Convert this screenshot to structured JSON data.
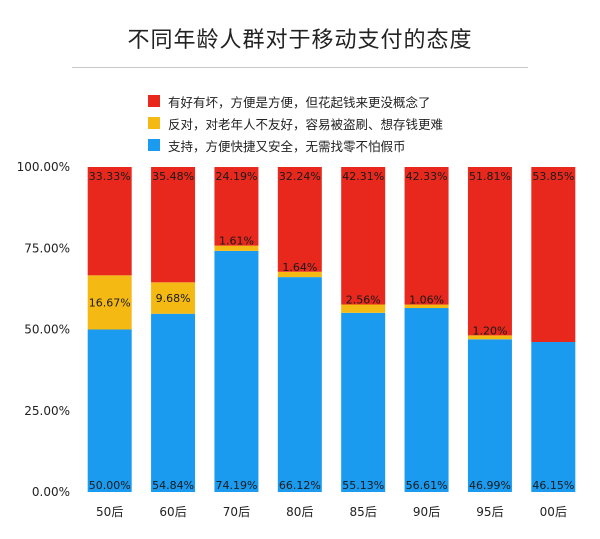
{
  "chart_data": {
    "type": "bar",
    "stacked": true,
    "title": "不同年龄人群对于移动支付的态度",
    "categories": [
      "50后",
      "60后",
      "70后",
      "80后",
      "85后",
      "90后",
      "95后",
      "00后"
    ],
    "y_tick_labels": [
      "0.00%",
      "25.00%",
      "50.00%",
      "75.00%",
      "100.00%"
    ],
    "ylim": [
      0,
      100
    ],
    "legend_position": "top",
    "series": [
      {
        "name": "支持，方便快捷又安全，无需找零不怕假币",
        "color": "#1a9bf0",
        "values": [
          50.0,
          54.84,
          74.19,
          66.12,
          55.13,
          56.61,
          46.99,
          46.15
        ],
        "labels": [
          "50.00%",
          "54.84%",
          "74.19%",
          "66.12%",
          "55.13%",
          "56.61%",
          "46.99%",
          "46.15%"
        ]
      },
      {
        "name": "反对，对老年人不友好，容易被盗刷、想存钱更难",
        "color": "#f5b914",
        "values": [
          16.67,
          9.68,
          1.61,
          1.64,
          2.56,
          1.06,
          1.2,
          0
        ],
        "labels": [
          "16.67%",
          "9.68%",
          "1.61%",
          "1.64%",
          "2.56%",
          "1.06%",
          "1.20%",
          ""
        ]
      },
      {
        "name": "有好有坏，方便是方便，但花起钱来更没概念了",
        "color": "#e8281c",
        "values": [
          33.33,
          35.48,
          24.19,
          32.24,
          42.31,
          42.33,
          51.81,
          53.85
        ],
        "labels": [
          "33.33%",
          "35.48%",
          "24.19%",
          "32.24%",
          "42.31%",
          "42.33%",
          "51.81%",
          "53.85%"
        ]
      }
    ],
    "legend_order": [
      2,
      1,
      0
    ]
  }
}
